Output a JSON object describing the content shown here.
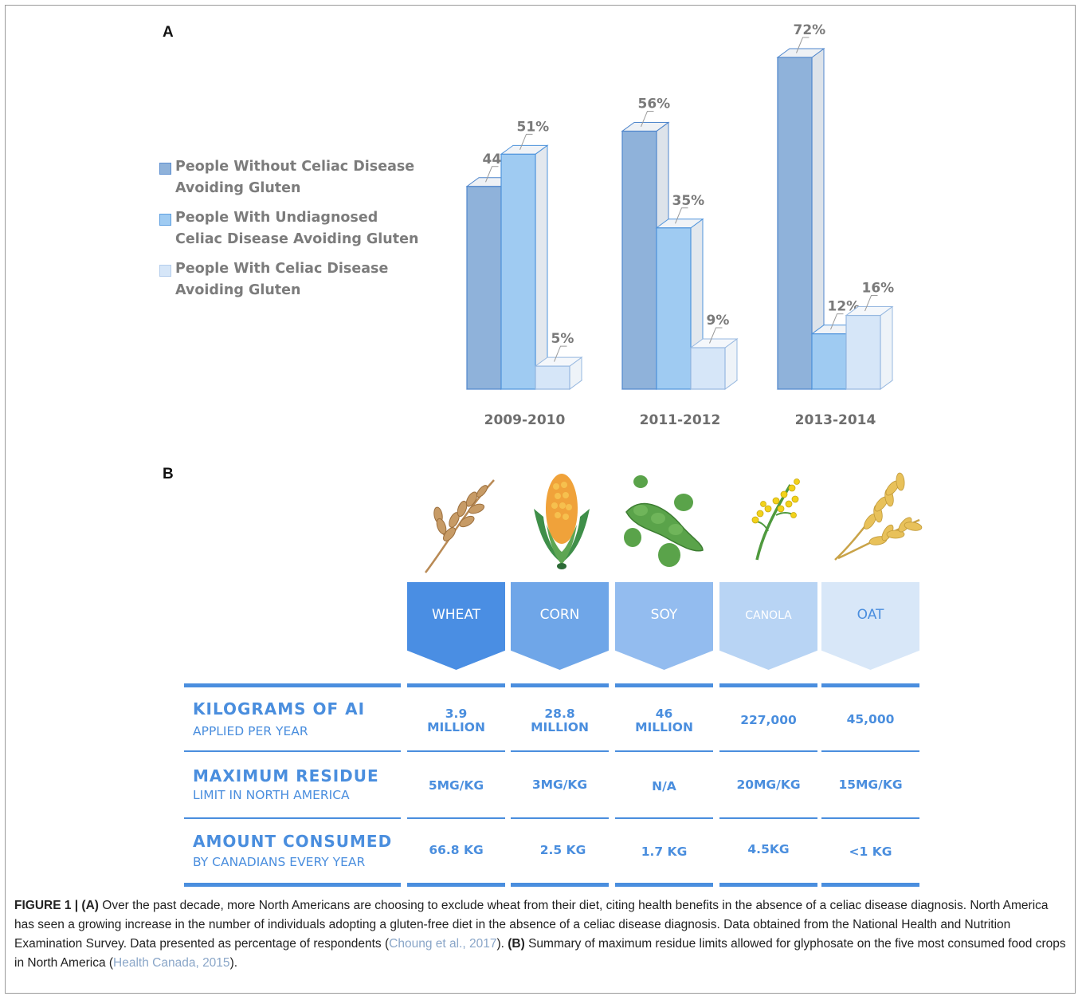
{
  "panel_a": {
    "label": "A"
  },
  "panel_b": {
    "label": "B"
  },
  "legend": [
    {
      "label": "People Without Celiac Disease Avoiding Gluten",
      "color": "#8fb2da"
    },
    {
      "label": "People With Undiagnosed Celiac Disease Avoiding Gluten",
      "color": "#9fcbf2"
    },
    {
      "label": "People With Celiac Disease Avoiding Gluten",
      "color": "#d6e6f8"
    }
  ],
  "chart_data": {
    "type": "bar",
    "categories": [
      "2009-2010",
      "2011-2012",
      "2013-2014"
    ],
    "series": [
      {
        "name": "People Without Celiac Disease Avoiding Gluten",
        "values": [
          44,
          56,
          72
        ],
        "color": "#8fb2da"
      },
      {
        "name": "People With Undiagnosed Celiac Disease Avoiding Gluten",
        "values": [
          51,
          35,
          12
        ],
        "color": "#9fcbf2"
      },
      {
        "name": "People With Celiac Disease Avoiding Gluten",
        "values": [
          5,
          9,
          16
        ],
        "color": "#d6e6f8"
      }
    ],
    "data_labels": [
      [
        "44%",
        "51%",
        "5%"
      ],
      [
        "56%",
        "35%",
        "9%"
      ],
      [
        "72%",
        "12%",
        "16%"
      ]
    ],
    "ylim": [
      0,
      72
    ],
    "grid": false,
    "legend_position": "left"
  },
  "crops": [
    {
      "name": "WHEAT",
      "icon": "wheat-icon",
      "color": "#4a8ee3"
    },
    {
      "name": "CORN",
      "icon": "corn-icon",
      "color": "#6fa6e8"
    },
    {
      "name": "SOY",
      "icon": "soybean-icon",
      "color": "#93bcef"
    },
    {
      "name": "CANOLA",
      "icon": "canola-icon",
      "color": "#b8d4f4"
    },
    {
      "name": "OAT",
      "icon": "oat-icon",
      "color": "#d8e7f8"
    }
  ],
  "table": {
    "rows": [
      {
        "title": "KILOGRAMS OF AI",
        "subtitle": "APPLIED PER YEAR",
        "values": [
          "3.9\nMILLION",
          "28.8\nMILLION",
          "46\nMILLION",
          "227,000",
          "45,000"
        ]
      },
      {
        "title": "MAXIMUM RESIDUE",
        "subtitle": "LIMIT IN NORTH AMERICA",
        "values": [
          "5MG/KG",
          "3MG/KG",
          "N/A",
          "20MG/KG",
          "15MG/KG"
        ]
      },
      {
        "title": "AMOUNT CONSUMED",
        "subtitle": "BY CANADIANS EVERY YEAR",
        "values": [
          "66.8 KG",
          "2.5 KG",
          "1.7 KG",
          "4.5KG",
          "<1 KG"
        ]
      }
    ]
  },
  "caption": {
    "figure_label": "FIGURE 1 | (A)",
    "text_a": " Over the past decade, more North Americans are choosing to exclude wheat from their diet, citing health benefits in the absence of a celiac disease diagnosis. North America has seen a growing increase in the number of individuals adopting a gluten-free diet in the absence of a celiac disease diagnosis. Data obtained from the National Health and Nutrition Examination Survey. Data presented as percentage of respondents (",
    "cite_a": "Choung et al., 2017",
    "text_a_end": "). ",
    "label_b": "(B)",
    "text_b": " Summary of maximum residue limits allowed for glyphosate on the five most consumed food crops in North America (",
    "cite_b": "Health Canada, 2015",
    "text_b_end": ")."
  }
}
